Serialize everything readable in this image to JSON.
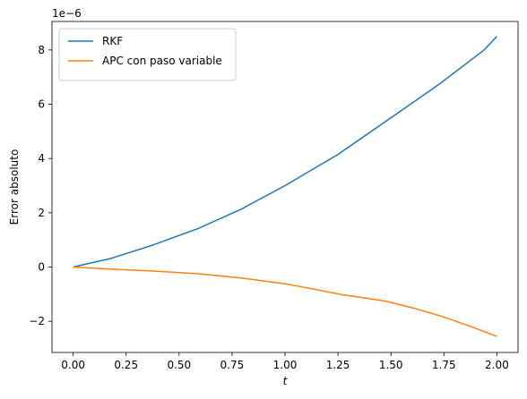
{
  "chart_data": {
    "type": "line",
    "title": "",
    "xlabel": "t",
    "ylabel": "Error absoluto",
    "y_scale_label": "1e−6",
    "xlim": [
      -0.1,
      2.1
    ],
    "ylim": [
      -3.15,
      9.05
    ],
    "x_ticks": [
      0.0,
      0.25,
      0.5,
      0.75,
      1.0,
      1.25,
      1.5,
      1.75,
      2.0
    ],
    "x_tick_labels": [
      "0.00",
      "0.25",
      "0.50",
      "0.75",
      "1.00",
      "1.25",
      "1.50",
      "1.75",
      "2.00"
    ],
    "y_ticks": [
      -2,
      0,
      2,
      4,
      6,
      8
    ],
    "y_tick_labels": [
      "−2",
      "0",
      "2",
      "4",
      "6",
      "8"
    ],
    "grid": false,
    "legend_position": "top-left",
    "series": [
      {
        "name": "RKF",
        "color": "#1f77b4",
        "x": [
          0.0,
          0.18,
          0.38,
          0.59,
          0.79,
          1.0,
          1.25,
          1.5,
          1.73,
          1.94,
          2.0
        ],
        "y": [
          0.0,
          0.32,
          0.82,
          1.42,
          2.12,
          3.0,
          4.15,
          5.5,
          6.75,
          8.0,
          8.5
        ]
      },
      {
        "name": "APC con paso variable",
        "color": "#ff7f0e",
        "x": [
          0.0,
          0.18,
          0.38,
          0.59,
          0.79,
          1.0,
          1.12,
          1.27,
          1.47,
          1.6,
          1.74,
          1.88,
          2.0
        ],
        "y": [
          0.0,
          -0.08,
          -0.15,
          -0.25,
          -0.4,
          -0.62,
          -0.79,
          -1.02,
          -1.25,
          -1.5,
          -1.82,
          -2.2,
          -2.56
        ]
      }
    ]
  }
}
